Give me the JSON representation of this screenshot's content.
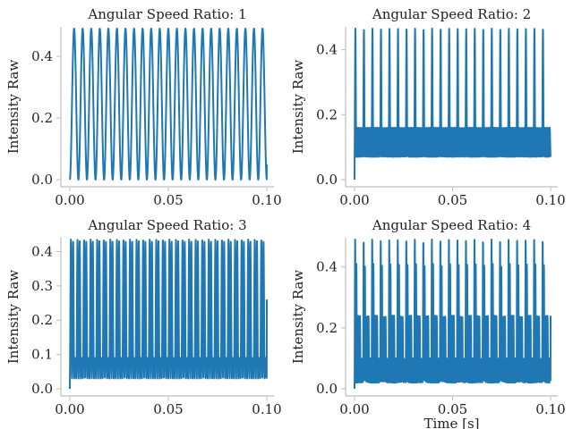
{
  "colors": {
    "series": "#1f77b4",
    "axis": "#bdbdbd",
    "text": "#222222"
  },
  "chart_data": [
    {
      "type": "line",
      "title": "Angular Speed Ratio: 1",
      "xlabel": "",
      "ylabel": "Intensity Raw",
      "xlim": [
        0,
        0.1
      ],
      "ylim": [
        0,
        0.49
      ],
      "xticks": [
        0.0,
        0.05,
        0.1
      ],
      "xtick_labels": [
        "0.00",
        "0.05",
        "0.10"
      ],
      "yticks": [
        0.0,
        0.2,
        0.4
      ],
      "ytick_labels": [
        "0.0",
        "0.2",
        "0.4"
      ],
      "grid": false,
      "series": [
        {
          "ratio": 1,
          "periods": 23,
          "x_start": 0,
          "x_end": 0.1,
          "y_min": 0.0,
          "y_max": 0.49,
          "y_end": 0.05,
          "peaks": [
            0.49
          ]
        }
      ]
    },
    {
      "type": "line",
      "title": "Angular Speed Ratio: 2",
      "xlabel": "",
      "ylabel": "Intensity Raw",
      "xlim": [
        0,
        0.1
      ],
      "ylim": [
        0,
        0.465
      ],
      "xticks": [
        0.0,
        0.05,
        0.1
      ],
      "xtick_labels": [
        "0.00",
        "0.05",
        "0.10"
      ],
      "yticks": [
        0.0,
        0.2,
        0.4
      ],
      "ytick_labels": [
        "0.0",
        "0.2",
        "0.4"
      ],
      "grid": false,
      "series": [
        {
          "ratio": 2,
          "periods": 23,
          "x_start": 0,
          "x_end": 0.1,
          "y_min": 0.07,
          "y_max": 0.465,
          "y_end": 0.07,
          "peaks": [
            0.465,
            0.16,
            0.16,
            0.16,
            0.16
          ]
        }
      ]
    },
    {
      "type": "line",
      "title": "Angular Speed Ratio: 3",
      "xlabel": "",
      "ylabel": "Intensity Raw",
      "xlim": [
        0,
        0.1
      ],
      "ylim": [
        0,
        0.435
      ],
      "xticks": [
        0.0,
        0.05,
        0.1
      ],
      "xtick_labels": [
        "0.00",
        "0.05",
        "0.10"
      ],
      "yticks": [
        0.0,
        0.1,
        0.2,
        0.3,
        0.4
      ],
      "ytick_labels": [
        "0.0",
        "0.1",
        "0.2",
        "0.3",
        "0.4"
      ],
      "grid": false,
      "series": [
        {
          "ratio": 3,
          "periods": 30,
          "x_start": 0,
          "x_end": 0.1,
          "y_min": 0.03,
          "y_max": 0.435,
          "y_end": 0.26,
          "peaks": [
            0.435,
            0.43,
            0.09
          ]
        }
      ]
    },
    {
      "type": "line",
      "title": "Angular Speed Ratio: 4",
      "xlabel": "Time [s]",
      "ylabel": "Intensity Raw",
      "xlim": [
        0,
        0.1
      ],
      "ylim": [
        0,
        0.49
      ],
      "xticks": [
        0.0,
        0.05,
        0.1
      ],
      "xtick_labels": [
        "0.00",
        "0.05",
        "0.10"
      ],
      "yticks": [
        0.0,
        0.2,
        0.4
      ],
      "ytick_labels": [
        "0.0",
        "0.2",
        "0.4"
      ],
      "grid": false,
      "series": [
        {
          "ratio": 4,
          "periods": 23,
          "x_start": 0,
          "x_end": 0.1,
          "y_min": 0.02,
          "y_max": 0.49,
          "y_end": 0.24,
          "peaks": [
            0.49,
            0.41,
            0.24,
            0.24,
            0.24,
            0.1,
            0.1
          ]
        }
      ]
    }
  ]
}
